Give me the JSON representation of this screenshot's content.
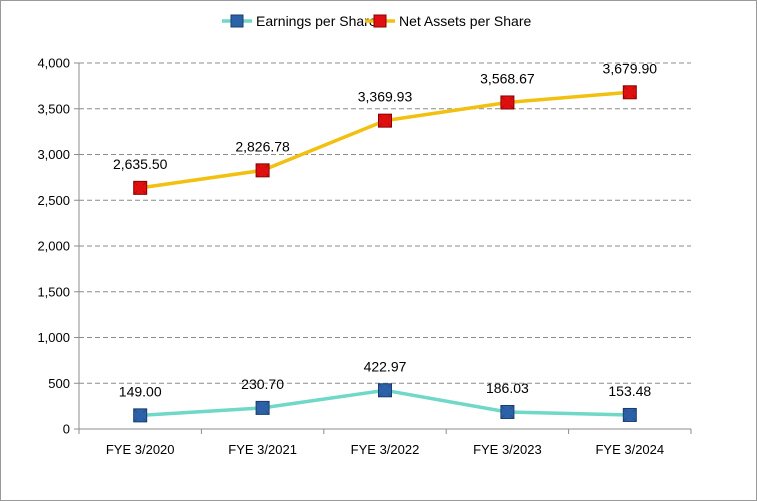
{
  "chart_data": {
    "type": "line",
    "categories": [
      "FYE 3/2020",
      "FYE 3/2021",
      "FYE 3/2022",
      "FYE 3/2023",
      "FYE 3/2024"
    ],
    "ylim": [
      0,
      4000
    ],
    "yticks": [
      0,
      500,
      1000,
      1500,
      2000,
      2500,
      3000,
      3500,
      4000
    ],
    "ytick_labels": [
      "0",
      "500",
      "1,000",
      "1,500",
      "2,000",
      "2,500",
      "3,000",
      "3,500",
      "4,000"
    ],
    "grid": "horizontal dashed",
    "legend_position": "top-center",
    "series": [
      {
        "name": "Earnings per Share",
        "values": [
          149.0,
          230.7,
          422.97,
          186.03,
          153.48
        ],
        "labels": [
          "149.00",
          "230.70",
          "422.97",
          "186.03",
          "153.48"
        ],
        "line_color": "#6fd8c8",
        "marker_color": "#2e62a8",
        "marker_edge": "#1a3c6e"
      },
      {
        "name": "Net Assets per Share",
        "values": [
          2635.5,
          2826.78,
          3369.93,
          3568.67,
          3679.9
        ],
        "labels": [
          "2,635.50",
          "2,826.78",
          "3,369.93",
          "3,568.67",
          "3,679.90"
        ],
        "line_color": "#f2c010",
        "marker_color": "#e01010",
        "marker_edge": "#8a0000"
      }
    ]
  }
}
